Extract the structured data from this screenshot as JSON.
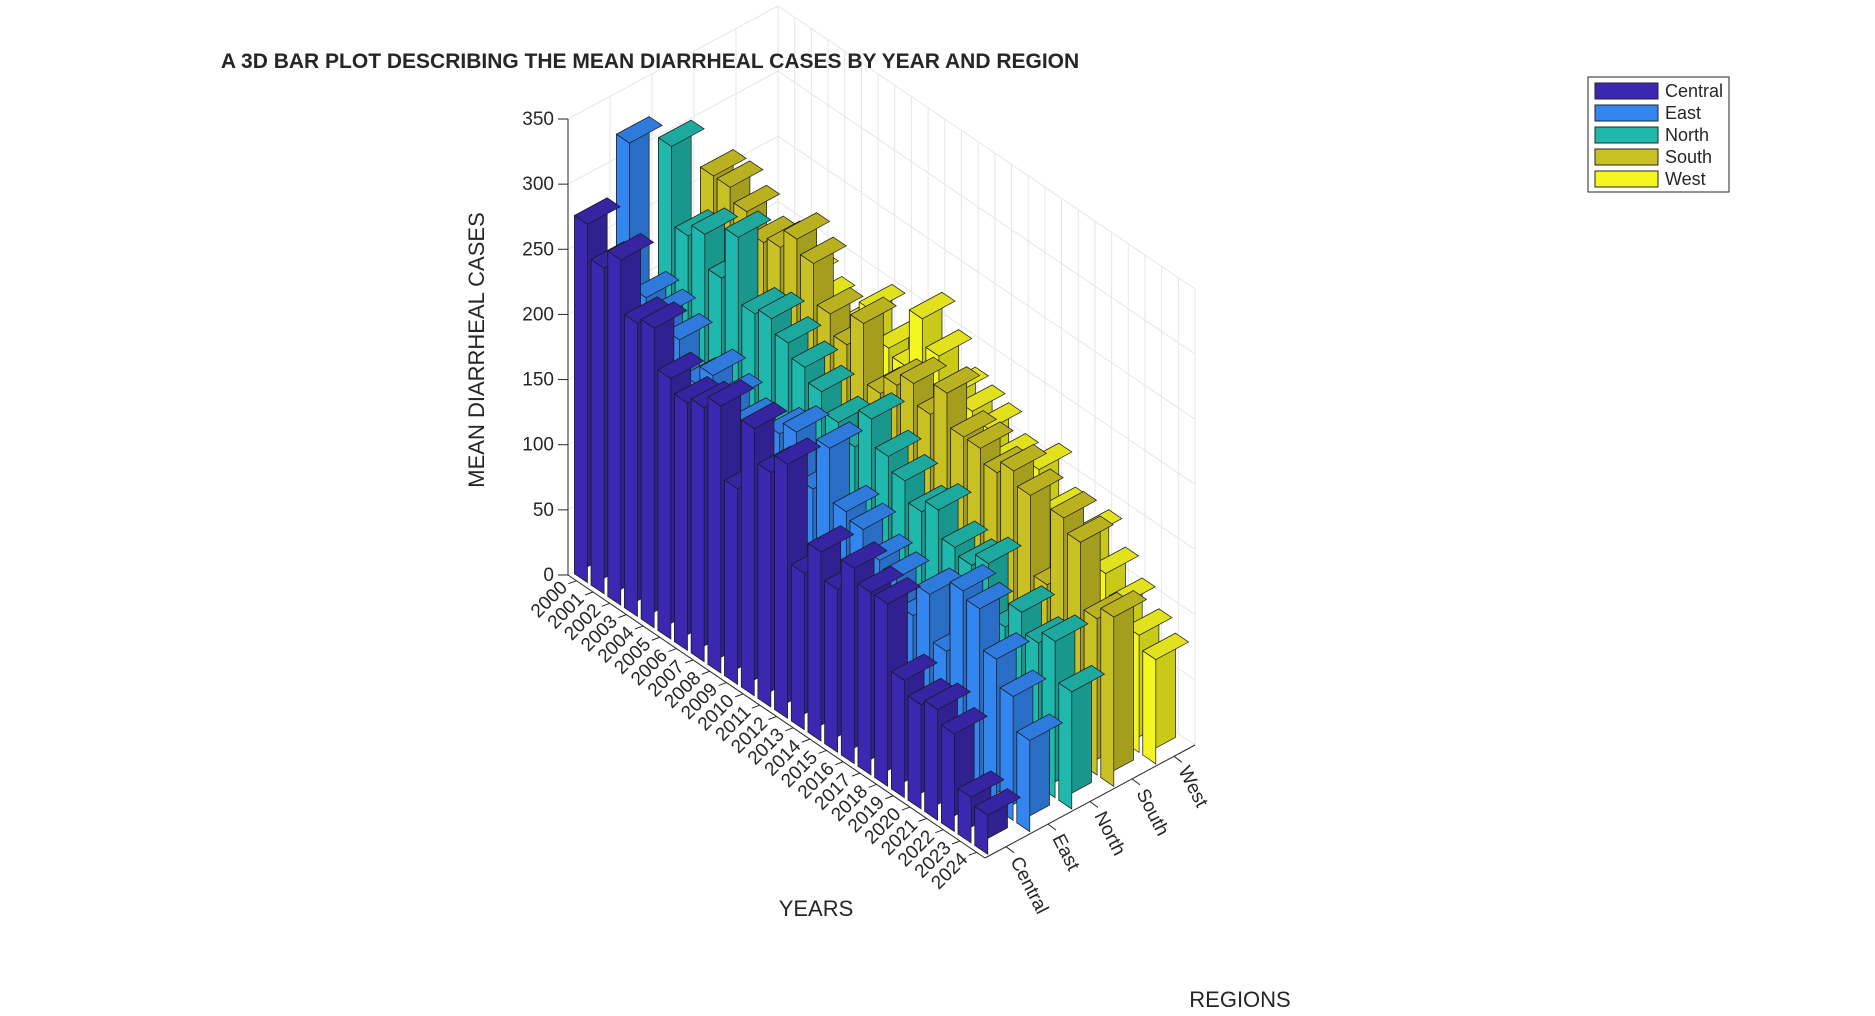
{
  "chart_data": {
    "type": "bar3d",
    "title": "A 3D BAR PLOT DESCRIBING THE MEAN DIARRHEAL CASES BY YEAR AND REGION",
    "xlabel": "YEARS",
    "ylabel": "REGIONS",
    "zlabel": "MEAN DIARRHEAL CASES",
    "zlim": [
      0,
      350
    ],
    "z_ticks": [
      0,
      50,
      100,
      150,
      200,
      250,
      300,
      350
    ],
    "grid": true,
    "legend_position": "top-right",
    "categories": [
      "2000",
      "2001",
      "2002",
      "2003",
      "2004",
      "2005",
      "2006",
      "2007",
      "2008",
      "2009",
      "2010",
      "2011",
      "2012",
      "2013",
      "2014",
      "2015",
      "2016",
      "2017",
      "2018",
      "2019",
      "2020",
      "2021",
      "2022",
      "2023",
      "2024"
    ],
    "series": [
      {
        "name": "Central",
        "color": "#3b27b0",
        "values": [
          275,
          250,
          265,
          225,
          230,
          200,
          190,
          195,
          205,
          150,
          205,
          180,
          195,
          120,
          145,
          125,
          150,
          140,
          140,
          90,
          80,
          85,
          75,
          35,
          30
        ]
      },
      {
        "name": "East",
        "color": "#3385f0",
        "values": [
          320,
          210,
          205,
          195,
          170,
          185,
          175,
          165,
          125,
          175,
          185,
          150,
          190,
          150,
          145,
          130,
          125,
          105,
          130,
          95,
          150,
          145,
          115,
          95,
          70
        ]
      },
      {
        "name": "North",
        "color": "#1fb8ac",
        "values": [
          300,
          240,
          250,
          225,
          265,
          215,
          220,
          210,
          200,
          190,
          175,
          165,
          195,
          175,
          165,
          150,
          160,
          140,
          135,
          145,
          105,
          125,
          110,
          120,
          90
        ]
      },
      {
        "name": "South",
        "color": "#c9c023",
        "values": [
          260,
          260,
          250,
          235,
          240,
          255,
          245,
          215,
          200,
          225,
          180,
          195,
          205,
          190,
          215,
          190,
          190,
          180,
          190,
          180,
          120,
          180,
          170,
          120,
          130
        ]
      },
      {
        "name": "West",
        "color": "#f5f51f",
        "values": [
          180,
          190,
          185,
          190,
          180,
          165,
          175,
          200,
          180,
          175,
          220,
          200,
          180,
          175,
          170,
          155,
          150,
          165,
          140,
          110,
          140,
          120,
          105,
          90,
          80
        ]
      }
    ]
  }
}
